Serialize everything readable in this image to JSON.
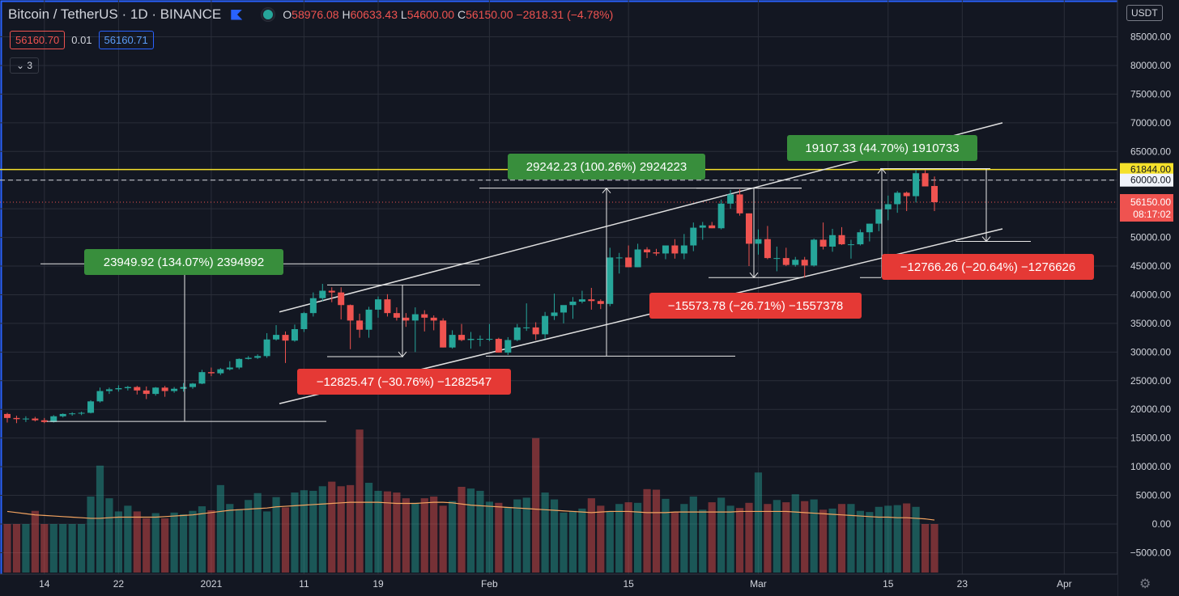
{
  "header": {
    "symbol": "Bitcoin / TetherUS · 1D · BINANCE",
    "open_label": "O",
    "open": "58976.08",
    "high_label": "H",
    "high": "60633.43",
    "low_label": "L",
    "low": "54600.00",
    "close_label": "C",
    "close": "56150.00",
    "change": "−2818.31 (−4.78%)"
  },
  "quote": {
    "sell": "56160.70",
    "spread": "0.01",
    "buy": "56160.71"
  },
  "indicator_count": "3",
  "currency_button": "USDT",
  "colors": {
    "up": "#26a69a",
    "down": "#ef5350",
    "background": "#131722",
    "grid": "#2a2e39",
    "accent_line": "#f5e12b",
    "green_label": "#388e3c",
    "red_label": "#e53935",
    "ma": "#f4a460"
  },
  "chart_data": {
    "type": "candlestick",
    "y_axis": {
      "min": -8000,
      "max": 91000,
      "ticks": [
        -5000,
        0,
        5000,
        10000,
        15000,
        20000,
        25000,
        30000,
        35000,
        40000,
        45000,
        50000,
        55000,
        60000,
        65000,
        70000,
        75000,
        80000,
        85000
      ],
      "tick_labels": [
        "−5000.00",
        "0.00",
        "5000.00",
        "10000.00",
        "15000.00",
        "20000.00",
        "25000.00",
        "30000.00",
        "35000.00",
        "40000.00",
        "45000.00",
        "50000.00",
        "55000.00",
        "60000.00",
        "65000.00",
        "70000.00",
        "75000.00",
        "80000.00",
        "85000.00"
      ]
    },
    "x_axis": {
      "tick_labels": [
        "14",
        "22",
        "2021",
        "11",
        "19",
        "Feb",
        "15",
        "Mar",
        "15",
        "23",
        "Apr"
      ],
      "tick_days": [
        4,
        12,
        22,
        32,
        40,
        52,
        67,
        81,
        95,
        103,
        114
      ]
    },
    "price_markers": [
      {
        "value": 61844,
        "label": "61844.00",
        "style": "yellow"
      },
      {
        "value": 60000,
        "label": "60000.00",
        "style": "dashed-white"
      },
      {
        "value": 56150,
        "label": "56150.00",
        "sub": "08:17:02",
        "style": "last-price"
      }
    ],
    "candles": [
      {
        "d": 0,
        "o": 19200,
        "h": 19400,
        "l": 17700,
        "c": 18500
      },
      {
        "d": 1,
        "o": 18500,
        "h": 18900,
        "l": 17600,
        "c": 18300
      },
      {
        "d": 2,
        "o": 18300,
        "h": 18800,
        "l": 17800,
        "c": 18400
      },
      {
        "d": 3,
        "o": 18400,
        "h": 18700,
        "l": 17900,
        "c": 18100
      },
      {
        "d": 4,
        "o": 18100,
        "h": 18500,
        "l": 17600,
        "c": 17800
      },
      {
        "d": 5,
        "o": 17800,
        "h": 19000,
        "l": 17700,
        "c": 18800
      },
      {
        "d": 6,
        "o": 18800,
        "h": 19300,
        "l": 18600,
        "c": 19200
      },
      {
        "d": 7,
        "o": 19200,
        "h": 19500,
        "l": 18900,
        "c": 19300
      },
      {
        "d": 8,
        "o": 19300,
        "h": 19600,
        "l": 19000,
        "c": 19400
      },
      {
        "d": 9,
        "o": 19400,
        "h": 21600,
        "l": 19300,
        "c": 21400
      },
      {
        "d": 10,
        "o": 21400,
        "h": 23800,
        "l": 21200,
        "c": 23200
      },
      {
        "d": 11,
        "o": 23200,
        "h": 23800,
        "l": 22700,
        "c": 23500
      },
      {
        "d": 12,
        "o": 23500,
        "h": 24200,
        "l": 23100,
        "c": 23700
      },
      {
        "d": 13,
        "o": 23700,
        "h": 24100,
        "l": 23300,
        "c": 23900
      },
      {
        "d": 14,
        "o": 23900,
        "h": 24100,
        "l": 22600,
        "c": 23300
      },
      {
        "d": 15,
        "o": 23300,
        "h": 24000,
        "l": 21800,
        "c": 22700
      },
      {
        "d": 16,
        "o": 22700,
        "h": 23900,
        "l": 22400,
        "c": 23800
      },
      {
        "d": 17,
        "o": 23800,
        "h": 24100,
        "l": 22200,
        "c": 23200
      },
      {
        "d": 18,
        "o": 23200,
        "h": 23900,
        "l": 22900,
        "c": 23600
      },
      {
        "d": 19,
        "o": 23600,
        "h": 24600,
        "l": 23100,
        "c": 23900
      },
      {
        "d": 20,
        "o": 23900,
        "h": 24600,
        "l": 23600,
        "c": 24500
      },
      {
        "d": 21,
        "o": 24500,
        "h": 26900,
        "l": 24400,
        "c": 26500
      },
      {
        "d": 22,
        "o": 26500,
        "h": 27300,
        "l": 25800,
        "c": 26300
      },
      {
        "d": 23,
        "o": 26300,
        "h": 27200,
        "l": 26000,
        "c": 27000
      },
      {
        "d": 24,
        "o": 27000,
        "h": 28400,
        "l": 26800,
        "c": 27300
      },
      {
        "d": 25,
        "o": 27300,
        "h": 28900,
        "l": 27000,
        "c": 28800
      },
      {
        "d": 26,
        "o": 28800,
        "h": 29300,
        "l": 28700,
        "c": 29000
      },
      {
        "d": 27,
        "o": 29000,
        "h": 29600,
        "l": 28800,
        "c": 29300
      },
      {
        "d": 28,
        "o": 29300,
        "h": 33300,
        "l": 29000,
        "c": 32200
      },
      {
        "d": 29,
        "o": 32200,
        "h": 34700,
        "l": 32000,
        "c": 33000
      },
      {
        "d": 30,
        "o": 33000,
        "h": 33600,
        "l": 28100,
        "c": 32000
      },
      {
        "d": 31,
        "o": 32000,
        "h": 34800,
        "l": 31800,
        "c": 34000
      },
      {
        "d": 32,
        "o": 34000,
        "h": 37000,
        "l": 33500,
        "c": 36800
      },
      {
        "d": 33,
        "o": 36800,
        "h": 40400,
        "l": 36200,
        "c": 39400
      },
      {
        "d": 34,
        "o": 39400,
        "h": 41900,
        "l": 38900,
        "c": 40700
      },
      {
        "d": 35,
        "o": 40700,
        "h": 41300,
        "l": 38700,
        "c": 40400
      },
      {
        "d": 36,
        "o": 40400,
        "h": 41300,
        "l": 35700,
        "c": 38200
      },
      {
        "d": 37,
        "o": 38200,
        "h": 38300,
        "l": 30500,
        "c": 35500
      },
      {
        "d": 38,
        "o": 35500,
        "h": 36700,
        "l": 32500,
        "c": 33900
      },
      {
        "d": 39,
        "o": 33900,
        "h": 37900,
        "l": 32500,
        "c": 37400
      },
      {
        "d": 40,
        "o": 37400,
        "h": 39700,
        "l": 36000,
        "c": 39200
      },
      {
        "d": 41,
        "o": 39200,
        "h": 40100,
        "l": 36200,
        "c": 36800
      },
      {
        "d": 42,
        "o": 36800,
        "h": 37800,
        "l": 35500,
        "c": 36000
      },
      {
        "d": 43,
        "o": 36000,
        "h": 36800,
        "l": 34400,
        "c": 35500
      },
      {
        "d": 44,
        "o": 35500,
        "h": 37800,
        "l": 30000,
        "c": 36600
      },
      {
        "d": 45,
        "o": 36600,
        "h": 37300,
        "l": 33600,
        "c": 36000
      },
      {
        "d": 46,
        "o": 36000,
        "h": 36400,
        "l": 33800,
        "c": 35500
      },
      {
        "d": 47,
        "o": 35500,
        "h": 35900,
        "l": 30800,
        "c": 30800
      },
      {
        "d": 48,
        "o": 30800,
        "h": 33800,
        "l": 30600,
        "c": 33000
      },
      {
        "d": 49,
        "o": 33000,
        "h": 34900,
        "l": 31900,
        "c": 32100
      },
      {
        "d": 50,
        "o": 32100,
        "h": 33500,
        "l": 30600,
        "c": 32300
      },
      {
        "d": 51,
        "o": 32300,
        "h": 32900,
        "l": 31000,
        "c": 32300
      },
      {
        "d": 52,
        "o": 32300,
        "h": 34900,
        "l": 31900,
        "c": 32300
      },
      {
        "d": 53,
        "o": 32300,
        "h": 32500,
        "l": 29900,
        "c": 29900
      },
      {
        "d": 54,
        "o": 29900,
        "h": 32600,
        "l": 29500,
        "c": 32100
      },
      {
        "d": 55,
        "o": 32100,
        "h": 34900,
        "l": 31900,
        "c": 34300
      },
      {
        "d": 56,
        "o": 34300,
        "h": 38500,
        "l": 33700,
        "c": 34300
      },
      {
        "d": 57,
        "o": 34300,
        "h": 35200,
        "l": 32100,
        "c": 33100
      },
      {
        "d": 58,
        "o": 33100,
        "h": 37000,
        "l": 32300,
        "c": 36300
      },
      {
        "d": 59,
        "o": 36300,
        "h": 40200,
        "l": 35600,
        "c": 36900
      },
      {
        "d": 60,
        "o": 36900,
        "h": 37800,
        "l": 35000,
        "c": 38200
      },
      {
        "d": 61,
        "o": 38200,
        "h": 39600,
        "l": 35800,
        "c": 38800
      },
      {
        "d": 62,
        "o": 38800,
        "h": 40700,
        "l": 38500,
        "c": 39200
      },
      {
        "d": 63,
        "o": 39200,
        "h": 41200,
        "l": 37400,
        "c": 38900
      },
      {
        "d": 64,
        "o": 38900,
        "h": 39200,
        "l": 37500,
        "c": 38400
      },
      {
        "d": 65,
        "o": 38400,
        "h": 48200,
        "l": 38000,
        "c": 46500
      },
      {
        "d": 66,
        "o": 46500,
        "h": 47300,
        "l": 43700,
        "c": 46500
      },
      {
        "d": 67,
        "o": 46500,
        "h": 48600,
        "l": 45000,
        "c": 44800
      },
      {
        "d": 68,
        "o": 44800,
        "h": 48900,
        "l": 44800,
        "c": 47900
      },
      {
        "d": 69,
        "o": 47900,
        "h": 48300,
        "l": 46400,
        "c": 47400
      },
      {
        "d": 70,
        "o": 47400,
        "h": 48000,
        "l": 46800,
        "c": 47200
      },
      {
        "d": 71,
        "o": 47200,
        "h": 48200,
        "l": 46200,
        "c": 48600
      },
      {
        "d": 72,
        "o": 48600,
        "h": 49700,
        "l": 46300,
        "c": 47200
      },
      {
        "d": 73,
        "o": 47200,
        "h": 50600,
        "l": 46200,
        "c": 48600
      },
      {
        "d": 74,
        "o": 48600,
        "h": 52600,
        "l": 47600,
        "c": 51700
      },
      {
        "d": 75,
        "o": 51700,
        "h": 52700,
        "l": 49600,
        "c": 52100
      },
      {
        "d": 76,
        "o": 52100,
        "h": 52700,
        "l": 51600,
        "c": 51600
      },
      {
        "d": 77,
        "o": 51600,
        "h": 56600,
        "l": 51400,
        "c": 55900
      },
      {
        "d": 78,
        "o": 55900,
        "h": 58300,
        "l": 55000,
        "c": 57500
      },
      {
        "d": 79,
        "o": 57500,
        "h": 58400,
        "l": 53800,
        "c": 54200
      },
      {
        "d": 80,
        "o": 54200,
        "h": 54200,
        "l": 45000,
        "c": 48900
      },
      {
        "d": 81,
        "o": 48900,
        "h": 51400,
        "l": 47000,
        "c": 49700
      },
      {
        "d": 82,
        "o": 49700,
        "h": 52000,
        "l": 46200,
        "c": 46400
      },
      {
        "d": 83,
        "o": 46400,
        "h": 48400,
        "l": 44100,
        "c": 46400
      },
      {
        "d": 84,
        "o": 46400,
        "h": 48200,
        "l": 45000,
        "c": 45200
      },
      {
        "d": 85,
        "o": 45200,
        "h": 46600,
        "l": 44900,
        "c": 46100
      },
      {
        "d": 86,
        "o": 46100,
        "h": 46600,
        "l": 43000,
        "c": 45100
      },
      {
        "d": 87,
        "o": 45100,
        "h": 49800,
        "l": 44900,
        "c": 49600
      },
      {
        "d": 88,
        "o": 49600,
        "h": 52600,
        "l": 47900,
        "c": 48400
      },
      {
        "d": 89,
        "o": 48400,
        "h": 51500,
        "l": 47500,
        "c": 50400
      },
      {
        "d": 90,
        "o": 50400,
        "h": 51800,
        "l": 48700,
        "c": 48800
      },
      {
        "d": 91,
        "o": 48800,
        "h": 49600,
        "l": 46300,
        "c": 48800
      },
      {
        "d": 92,
        "o": 48800,
        "h": 51400,
        "l": 48600,
        "c": 50900
      },
      {
        "d": 93,
        "o": 50900,
        "h": 52400,
        "l": 49300,
        "c": 52400
      },
      {
        "d": 94,
        "o": 52400,
        "h": 54800,
        "l": 51100,
        "c": 54900
      },
      {
        "d": 95,
        "o": 54900,
        "h": 57300,
        "l": 53000,
        "c": 55800
      },
      {
        "d": 96,
        "o": 55800,
        "h": 58100,
        "l": 54300,
        "c": 57800
      },
      {
        "d": 97,
        "o": 57800,
        "h": 58000,
        "l": 54600,
        "c": 57200
      },
      {
        "d": 98,
        "o": 57200,
        "h": 61800,
        "l": 56100,
        "c": 61200
      },
      {
        "d": 99,
        "o": 61200,
        "h": 61800,
        "l": 59100,
        "c": 58900
      },
      {
        "d": 100,
        "o": 58976,
        "h": 60633,
        "l": 54600,
        "c": 56150
      }
    ],
    "volume": {
      "ma_color": "#f4a460",
      "ma_values": [
        2200,
        2000,
        1800,
        1600,
        1500,
        1400,
        1300,
        1200,
        1100,
        1000,
        1000,
        1100,
        1200,
        1200,
        1200,
        1200,
        1200,
        1300,
        1400,
        1500,
        1600,
        1800,
        2000,
        2200,
        2400,
        2500,
        2600,
        2700,
        2800,
        3000,
        3100,
        3200,
        3300,
        3400,
        3500,
        3600,
        3700,
        3800,
        3800,
        3800,
        3800,
        3700,
        3600,
        3600,
        3600,
        3700,
        3800,
        3800,
        3700,
        3500,
        3300,
        3200,
        3100,
        3000,
        2900,
        2800,
        2700,
        2600,
        2500,
        2400,
        2300,
        2200,
        2100,
        2000,
        2100,
        2200,
        2200,
        2200,
        2100,
        2000,
        2000,
        2000,
        2100,
        2100,
        2100,
        2100,
        2100,
        2100,
        2100,
        2200,
        2200,
        2200,
        2200,
        2200,
        2200,
        2100,
        2000,
        1900,
        1800,
        1700,
        1600,
        1500,
        1400,
        1300,
        1200,
        1200,
        1100,
        1100,
        1000,
        900,
        700
      ],
      "values": [
        -2300,
        -2000,
        -800,
        2300,
        -3100,
        -3800,
        -1500,
        -1700,
        -800,
        4800,
        10200,
        4500,
        2200,
        3200,
        2200,
        1000,
        1900,
        1000,
        2000,
        1700,
        2300,
        3100,
        2400,
        6800,
        3500,
        2600,
        4200,
        5400,
        2200,
        4700,
        2900,
        5500,
        5900,
        5800,
        6600,
        7400,
        6600,
        6800,
        16500,
        7200,
        5800,
        5700,
        5500,
        4500,
        3700,
        4500,
        4800,
        3200,
        4000,
        6500,
        6200,
        5800,
        3900,
        3700,
        3000,
        4300,
        4600,
        15000,
        5500,
        4300,
        2000,
        2300,
        2700,
        4500,
        3200,
        2300,
        3500,
        3800,
        3700,
        6100,
        6000,
        4400,
        2100,
        3500,
        4800,
        2500,
        3800,
        4600,
        3200,
        2800,
        3700,
        9000,
        3500,
        4200,
        3800,
        5200,
        4000,
        4300,
        2500,
        2700,
        3500,
        3500,
        2300,
        2100,
        3000,
        3200,
        3300,
        3600,
        3000,
        -2200,
        -1300
      ]
    },
    "measurements": [
      {
        "label": "23949.92 (134.07%) 2394992",
        "color": "green"
      },
      {
        "label": "−12825.47 (−30.76%) −1282547",
        "color": "red"
      },
      {
        "label": "29242.23 (100.26%) 2924223",
        "color": "green"
      },
      {
        "label": "−15573.78 (−26.71%) −1557378",
        "color": "red"
      },
      {
        "label": "19107.33 (44.70%) 1910733",
        "color": "green"
      },
      {
        "label": "−12766.26 (−20.64%) −1276626",
        "color": "red"
      }
    ]
  }
}
